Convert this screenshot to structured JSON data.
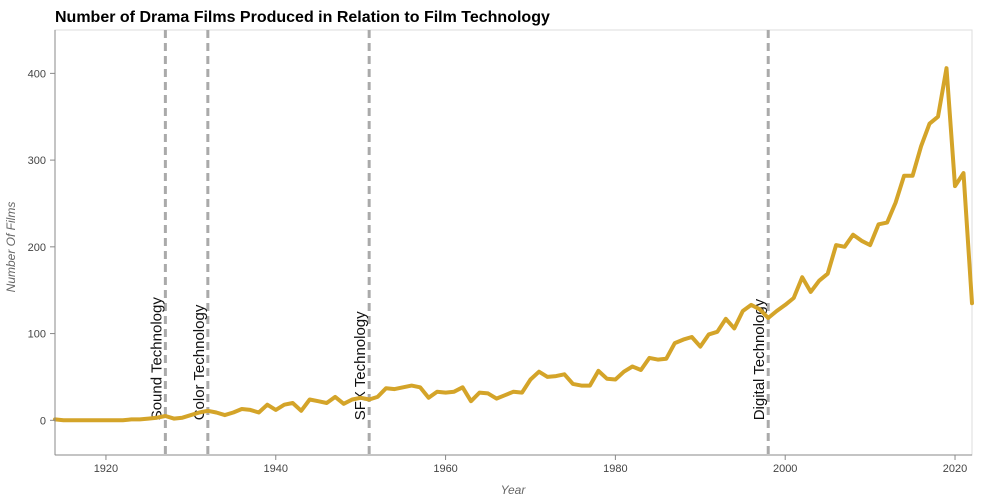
{
  "chart_data": {
    "type": "line",
    "title": "Number of Drama Films Produced in Relation to Film Technology",
    "xlabel": "Year",
    "ylabel": "Number Of Films",
    "xlim": [
      1914,
      2022
    ],
    "ylim": [
      -40,
      450
    ],
    "x_ticks": [
      1920,
      1940,
      1960,
      1980,
      2000,
      2020
    ],
    "y_ticks": [
      0,
      100,
      200,
      300,
      400
    ],
    "grid": false,
    "line_color": "#D4A429",
    "event_line_color": "#AAAAAA",
    "series": [
      {
        "x": [
          1914,
          1915,
          1916,
          1917,
          1918,
          1919,
          1920,
          1921,
          1922,
          1923,
          1924,
          1925,
          1926,
          1927,
          1928,
          1929,
          1930,
          1931,
          1932,
          1933,
          1934,
          1935,
          1936,
          1937,
          1938,
          1939,
          1940,
          1941,
          1942,
          1943,
          1944,
          1945,
          1946,
          1947,
          1948,
          1949,
          1950,
          1951,
          1952,
          1953,
          1954,
          1955,
          1956,
          1957,
          1958,
          1959,
          1960,
          1961,
          1962,
          1963,
          1964,
          1965,
          1966,
          1967,
          1968,
          1969,
          1970,
          1971,
          1972,
          1973,
          1974,
          1975,
          1976,
          1977,
          1978,
          1979,
          1980,
          1981,
          1982,
          1983,
          1984,
          1985,
          1986,
          1987,
          1988,
          1989,
          1990,
          1991,
          1992,
          1993,
          1994,
          1995,
          1996,
          1997,
          1998,
          1999,
          2000,
          2001,
          2002,
          2003,
          2004,
          2005,
          2006,
          2007,
          2008,
          2009,
          2010,
          2011,
          2012,
          2013,
          2014,
          2015,
          2016,
          2017,
          2018,
          2019,
          2020,
          2021,
          2022
        ],
        "y": [
          1,
          0,
          0,
          0,
          0,
          0,
          0,
          0,
          0,
          1,
          1,
          2,
          3,
          5,
          2,
          3,
          6,
          9,
          11,
          9,
          6,
          9,
          13,
          12,
          9,
          18,
          12,
          18,
          20,
          11,
          24,
          22,
          20,
          27,
          19,
          24,
          26,
          24,
          27,
          37,
          36,
          38,
          40,
          38,
          26,
          33,
          32,
          33,
          38,
          22,
          32,
          31,
          25,
          29,
          33,
          32,
          47,
          56,
          50,
          51,
          53,
          42,
          40,
          40,
          57,
          48,
          47,
          56,
          62,
          58,
          72,
          70,
          71,
          89,
          93,
          96,
          85,
          99,
          102,
          117,
          106,
          126,
          133,
          128,
          118,
          126,
          133,
          141,
          165,
          148,
          161,
          169,
          202,
          200,
          214,
          207,
          202,
          226,
          228,
          251,
          282,
          282,
          316,
          342,
          350,
          406,
          270,
          285,
          135
        ]
      }
    ],
    "events": [
      {
        "label": "Sound Technology",
        "year": 1927
      },
      {
        "label": "Color Technology",
        "year": 1932
      },
      {
        "label": "SFX Technology",
        "year": 1951
      },
      {
        "label": "Digital Technology",
        "year": 1998
      }
    ]
  }
}
